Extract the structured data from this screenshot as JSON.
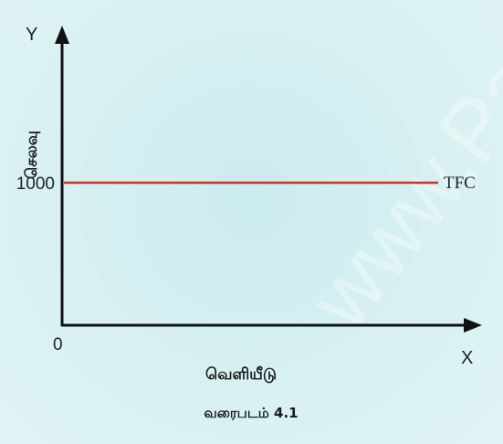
{
  "chart_data": {
    "type": "line",
    "title": "",
    "xlabel": "வெளியீடு",
    "ylabel": "செலவு",
    "x_axis_letter": "X",
    "y_axis_letter": "Y",
    "origin_label": "0",
    "yticks": [
      "1000"
    ],
    "ylim": [
      0,
      2000
    ],
    "series": [
      {
        "name": "TFC",
        "x": [
          0,
          10
        ],
        "y": [
          1000,
          1000
        ],
        "color": "#d0312d"
      }
    ],
    "caption": "வரைபடம் 4.1"
  },
  "watermark_text": "www.Pa",
  "colors": {
    "axis": "#111111",
    "series_line": "#d0312d",
    "background": "#d6f0f2"
  }
}
